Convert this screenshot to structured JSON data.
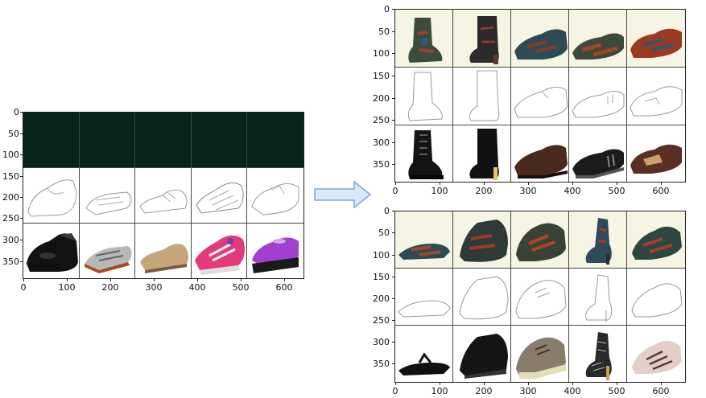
{
  "figure": {
    "left_panel": {
      "yticks": [
        "0",
        "50",
        "100",
        "150",
        "200",
        "250",
        "300",
        "350"
      ],
      "xticks": [
        "0",
        "100",
        "200",
        "300",
        "400",
        "500",
        "600"
      ],
      "rows": [
        "dark",
        "edge",
        "photo"
      ],
      "shoes": [
        "oxford-black",
        "sandal-grey",
        "loafer-tan",
        "sneaker-pink",
        "mary-jane-purple"
      ]
    },
    "right_top_panel": {
      "yticks": [
        "0",
        "50",
        "100",
        "150",
        "200",
        "250",
        "300",
        "350"
      ],
      "xticks": [
        "0",
        "100",
        "200",
        "300",
        "400",
        "500",
        "600"
      ],
      "rows": [
        "generated",
        "edge",
        "photo"
      ],
      "shoes": [
        "combat-boot-black",
        "heel-boot-black",
        "oxford-brown",
        "slipon-black",
        "loafer-brown"
      ]
    },
    "right_bottom_panel": {
      "yticks": [
        "0",
        "50",
        "100",
        "150",
        "200",
        "250",
        "300",
        "350"
      ],
      "xticks": [
        "0",
        "100",
        "200",
        "300",
        "400",
        "500",
        "600"
      ],
      "rows": [
        "generated",
        "edge",
        "photo"
      ],
      "shoes": [
        "flip-flop-black",
        "chukka-black",
        "sneaker-khaki",
        "heel-lace",
        "sneaker-pink-stripe"
      ]
    },
    "arrow_icon": "right-arrow-icon",
    "colors": {
      "dark_row": "#07231c",
      "arrow_fill": "#dbe8f8",
      "arrow_stroke": "#7fa6d8"
    }
  }
}
